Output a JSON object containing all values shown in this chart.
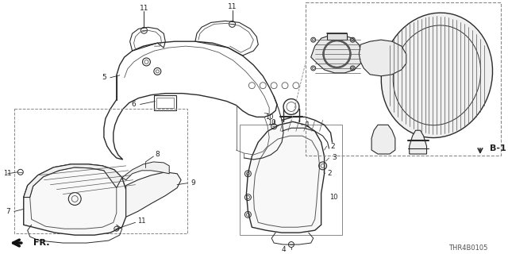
{
  "bg_color": "#ffffff",
  "line_color": "#2a2a2a",
  "label_color": "#222222",
  "diagram_code": "THR4B0105",
  "ref_label": "B-1",
  "fr_label": "FR.",
  "figsize": [
    6.4,
    3.2
  ],
  "dpi": 100,
  "gray": "#555555",
  "lgray": "#888888",
  "dgray": "#333333"
}
